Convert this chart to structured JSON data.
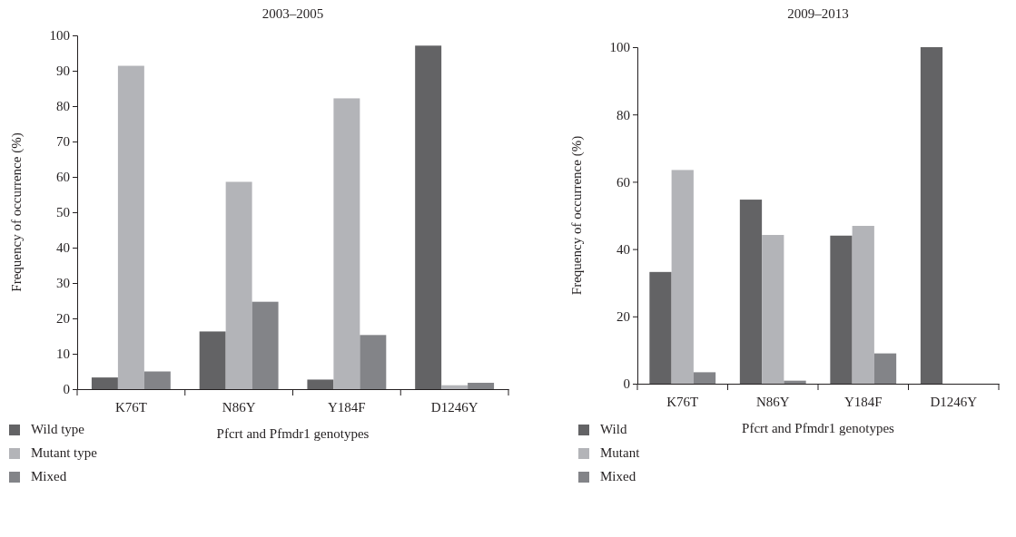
{
  "chart_data": [
    {
      "type": "bar",
      "title": "2003–2005",
      "xlabel": "Pfcrt and Pfmdr1 genotypes",
      "ylabel": "Frequency of occurrence (%)",
      "categories": [
        "K76T",
        "N86Y",
        "Y184F",
        "D1246Y"
      ],
      "series": [
        {
          "name": "Wild type",
          "color": "#636365",
          "values": [
            3.3,
            16.3,
            2.7,
            97.1
          ]
        },
        {
          "name": "Mutant type",
          "color": "#b3b4b8",
          "values": [
            91.4,
            58.6,
            82.2,
            1.1
          ]
        },
        {
          "name": "Mixed",
          "color": "#838488",
          "values": [
            5.0,
            24.7,
            15.3,
            1.8
          ]
        }
      ],
      "ylim": [
        0,
        100
      ],
      "yticks": [
        0,
        10,
        20,
        30,
        40,
        50,
        60,
        70,
        80,
        90,
        100
      ],
      "grid": false,
      "legend": "bottom left"
    },
    {
      "type": "bar",
      "title": "2009–2013",
      "xlabel": "Pfcrt and Pfmdr1 genotypes",
      "ylabel": "Frequency of occurrence (%)",
      "categories": [
        "K76T",
        "N86Y",
        "Y184F",
        "D1246Y"
      ],
      "series": [
        {
          "name": "Wild",
          "color": "#636365",
          "values": [
            33.2,
            54.7,
            44,
            100
          ]
        },
        {
          "name": "Mutant",
          "color": "#b3b4b8",
          "values": [
            63.5,
            44.2,
            46.9,
            0
          ]
        },
        {
          "name": "Mixed",
          "color": "#838488",
          "values": [
            3.4,
            0.9,
            9,
            0
          ]
        }
      ],
      "ylim": [
        0,
        100
      ],
      "yticks": [
        0,
        20,
        40,
        60,
        80,
        100
      ],
      "grid": false,
      "legend": "bottom left"
    }
  ]
}
